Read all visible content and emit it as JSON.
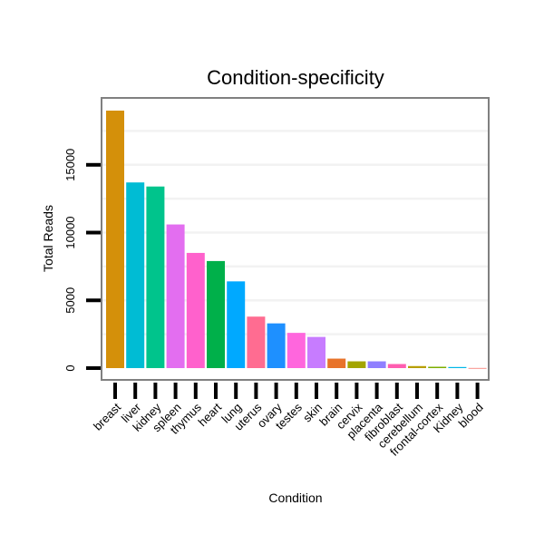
{
  "chart_data": {
    "type": "bar",
    "title": "Condition-specificity",
    "xlabel": "Condition",
    "ylabel": "Total Reads",
    "ylim": [
      0,
      19000
    ],
    "yticks": [
      0,
      5000,
      10000,
      15000
    ],
    "grid": true,
    "legend": "none",
    "categories": [
      "breast",
      "liver",
      "kidney",
      "spleen",
      "thymus",
      "heart",
      "lung",
      "uterus",
      "ovary",
      "testes",
      "skin",
      "brain",
      "cervix",
      "placenta",
      "fibroblast",
      "cerebellum",
      "frontal-cortex",
      "Kidney",
      "blood"
    ],
    "values": [
      19000,
      13700,
      13400,
      10600,
      8500,
      7900,
      6400,
      3800,
      3300,
      2600,
      2300,
      700,
      500,
      500,
      300,
      150,
      100,
      80,
      10
    ],
    "colors": [
      "#D4900A",
      "#00BCD4",
      "#00C48C",
      "#E36EF0",
      "#FF61CC",
      "#00B04A",
      "#00A9FF",
      "#FF6C91",
      "#1E90FF",
      "#FF66DD",
      "#C77CFF",
      "#E8732A",
      "#A3A500",
      "#8F7FFF",
      "#FF5DB0",
      "#B79F00",
      "#7CAE00",
      "#00B7E8",
      "#F8766D"
    ]
  }
}
